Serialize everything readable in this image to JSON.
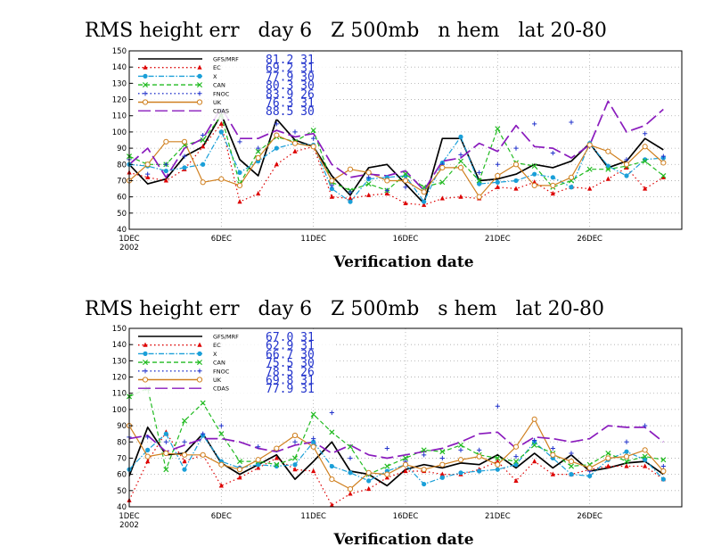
{
  "colors": {
    "gfs": "#000000",
    "ec": "#dd0000",
    "x": "#1a9fd8",
    "can": "#22bb22",
    "fnoc": "#2233cc",
    "uk": "#d08020",
    "cdas": "#8a1bbd",
    "grid": "#aaaaaa",
    "stat": "#2233cc"
  },
  "chart_data": [
    {
      "type": "line",
      "title": "RMS height err   day 6   Z 500mb   n hem   lat 20-80",
      "xlabel": "Verification date",
      "ylabel": "",
      "x_tick_labels": [
        "1DEC",
        "6DEC",
        "11DEC",
        "16DEC",
        "21DEC",
        "26DEC"
      ],
      "x_tick_sublabel": "2002",
      "x_tick_days": [
        1,
        6,
        11,
        16,
        21,
        26
      ],
      "xlim": [
        1,
        31
      ],
      "ylim": [
        40,
        150
      ],
      "y_ticks": [
        40,
        50,
        60,
        70,
        80,
        90,
        100,
        110,
        120,
        130,
        140,
        150
      ],
      "grid": true,
      "legend_position": "top-left",
      "series": [
        {
          "name": "GFS/MRF",
          "key": "gfs",
          "style": "solid",
          "marker": "none",
          "stat_mean": "81.2",
          "stat_n": "31",
          "values": [
            80,
            68,
            71,
            85,
            91,
            111,
            83,
            73,
            108,
            95,
            91,
            73,
            61,
            78,
            80,
            68,
            56,
            96,
            96,
            70,
            71,
            74,
            80,
            78,
            82,
            93,
            78,
            82,
            96,
            89
          ]
        },
        {
          "name": "EC",
          "key": "ec",
          "style": "dotted",
          "marker": "triangle",
          "stat_mean": "69.2",
          "stat_n": "31",
          "values": [
            75,
            72,
            70,
            77,
            91,
            105,
            57,
            62,
            80,
            88,
            91,
            60,
            59,
            61,
            62,
            56,
            55,
            59,
            60,
            59,
            66,
            65,
            69,
            62,
            66,
            65,
            71,
            78,
            65,
            72
          ]
        },
        {
          "name": "X",
          "key": "x",
          "style": "dashdot",
          "marker": "circle",
          "stat_mean": "77.9",
          "stat_n": "30",
          "values": [
            80,
            79,
            76,
            78,
            80,
            100,
            75,
            82,
            90,
            93,
            92,
            65,
            57,
            71,
            72,
            73,
            57,
            81,
            97,
            68,
            69,
            70,
            74,
            72,
            66,
            93,
            79,
            73,
            83,
            84
          ]
        },
        {
          "name": "CAN",
          "key": "can",
          "style": "dashed",
          "marker": "cross",
          "stat_mean": "80.3",
          "stat_n": "30",
          "values": [
            85,
            80,
            80,
            92,
            95,
            110,
            68,
            88,
            97,
            94,
            101,
            69,
            64,
            68,
            64,
            74,
            66,
            69,
            82,
            70,
            102,
            81,
            79,
            66,
            70,
            77,
            77,
            79,
            82,
            73
          ]
        },
        {
          "name": "FNOC",
          "key": "fnoc",
          "style": "dotted",
          "marker": "plus",
          "stat_mean": "83.9",
          "stat_n": "26",
          "values": [
            83,
            74,
            80,
            85,
            98,
            113,
            94,
            90,
            105,
            100,
            96,
            67,
            63,
            72,
            64,
            66,
            64,
            80,
            86,
            75,
            80,
            90,
            105,
            87,
            106,
            91,
            88,
            83,
            99,
            85
          ]
        },
        {
          "name": "UK",
          "key": "uk",
          "style": "solid",
          "marker": "circle-open",
          "stat_mean": "76.3",
          "stat_n": "31",
          "values": [
            70,
            80,
            94,
            94,
            69,
            71,
            67,
            84,
            98,
            93,
            91,
            70,
            77,
            75,
            70,
            70,
            63,
            78,
            78,
            60,
            73,
            80,
            67,
            67,
            72,
            92,
            88,
            80,
            91,
            81
          ]
        },
        {
          "name": "CDAS",
          "key": "cdas",
          "style": "longdash",
          "marker": "none",
          "stat_mean": "88.5",
          "stat_n": "30",
          "values": [
            80,
            90,
            72,
            90,
            96,
            115,
            96,
            96,
            101,
            97,
            99,
            80,
            72,
            74,
            73,
            76,
            64,
            82,
            84,
            93,
            88,
            104,
            91,
            90,
            84,
            92,
            119,
            100,
            104,
            114
          ]
        }
      ]
    },
    {
      "type": "line",
      "title": "RMS height err   day 6   Z 500mb   s hem   lat 20-80",
      "xlabel": "Verification date",
      "ylabel": "",
      "x_tick_labels": [
        "1DEC",
        "6DEC",
        "11DEC",
        "16DEC",
        "21DEC",
        "26DEC"
      ],
      "x_tick_sublabel": "2002",
      "x_tick_days": [
        1,
        6,
        11,
        16,
        21,
        26
      ],
      "xlim": [
        1,
        31
      ],
      "ylim": [
        40,
        150
      ],
      "y_ticks": [
        40,
        50,
        60,
        70,
        80,
        90,
        100,
        110,
        120,
        130,
        140,
        150
      ],
      "grid": true,
      "legend_position": "top-left",
      "series": [
        {
          "name": "GFS/MRF",
          "key": "gfs",
          "style": "solid",
          "marker": "none",
          "stat_mean": "67.0",
          "stat_n": "31",
          "values": [
            59,
            89,
            72,
            73,
            85,
            67,
            60,
            66,
            72,
            57,
            68,
            80,
            62,
            60,
            53,
            63,
            66,
            64,
            67,
            66,
            72,
            64,
            73,
            64,
            72,
            62,
            64,
            67,
            68,
            60
          ]
        },
        {
          "name": "EC",
          "key": "ec",
          "style": "dotted",
          "marker": "triangle",
          "stat_mean": "62.9",
          "stat_n": "31",
          "values": [
            44,
            68,
            86,
            68,
            72,
            53,
            58,
            64,
            70,
            63,
            62,
            41,
            48,
            51,
            58,
            62,
            62,
            60,
            60,
            63,
            68,
            56,
            68,
            60,
            60,
            63,
            65,
            65,
            65,
            57
          ]
        },
        {
          "name": "X",
          "key": "x",
          "style": "dashdot",
          "marker": "circle",
          "stat_mean": "66.7",
          "stat_n": "30",
          "values": [
            63,
            75,
            85,
            63,
            84,
            68,
            64,
            66,
            65,
            66,
            80,
            65,
            61,
            56,
            62,
            66,
            54,
            58,
            61,
            62,
            63,
            66,
            80,
            70,
            60,
            59,
            69,
            74,
            69,
            57
          ]
        },
        {
          "name": "CAN",
          "key": "can",
          "style": "dashed",
          "marker": "cross",
          "stat_mean": "75.5",
          "stat_n": "30",
          "values": [
            108,
            113,
            63,
            93,
            104,
            85,
            68,
            68,
            66,
            70,
            97,
            86,
            77,
            60,
            65,
            70,
            75,
            74,
            78,
            72,
            70,
            68,
            78,
            73,
            65,
            66,
            73,
            68,
            71,
            69
          ]
        },
        {
          "name": "FNOC",
          "key": "fnoc",
          "style": "dotted",
          "marker": "plus",
          "stat_mean": "78.5",
          "stat_n": "26",
          "values": [
            83,
            83,
            80,
            80,
            85,
            90,
            64,
            77,
            75,
            80,
            82,
            98,
            70,
            60,
            76,
            68,
            72,
            70,
            75,
            75,
            102,
            71,
            81,
            76,
            73,
            62,
            70,
            80,
            90,
            65
          ]
        },
        {
          "name": "UK",
          "key": "uk",
          "style": "solid",
          "marker": "circle-open",
          "stat_mean": "69.8",
          "stat_n": "31",
          "values": [
            90,
            71,
            73,
            72,
            72,
            66,
            63,
            69,
            76,
            84,
            77,
            57,
            51,
            61,
            60,
            66,
            63,
            66,
            69,
            71,
            66,
            77,
            94,
            72,
            68,
            64,
            70,
            71,
            75,
            62
          ]
        },
        {
          "name": "CDAS",
          "key": "cdas",
          "style": "longdash",
          "marker": "none",
          "stat_mean": "77.9",
          "stat_n": "31",
          "values": [
            82,
            84,
            74,
            78,
            82,
            82,
            80,
            76,
            74,
            78,
            80,
            73,
            78,
            72,
            70,
            72,
            74,
            76,
            80,
            85,
            86,
            76,
            83,
            82,
            80,
            82,
            90,
            89,
            89,
            80
          ]
        }
      ]
    }
  ]
}
